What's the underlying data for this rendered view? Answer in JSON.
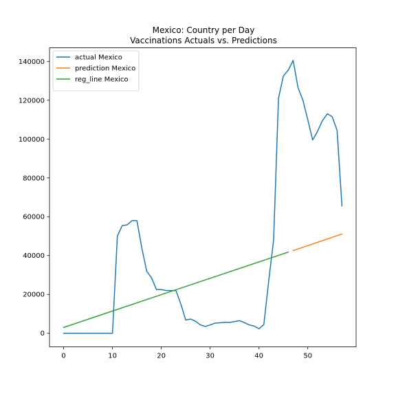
{
  "chart_data": {
    "type": "line",
    "title": "Mexico: Country per Day",
    "subtitle": "Vaccinations Actuals vs. Predictions",
    "xlabel": "",
    "ylabel": "",
    "xlim": [
      -2.9,
      59.9
    ],
    "ylim": [
      -7000,
      147000
    ],
    "x_ticks": [
      0,
      10,
      20,
      30,
      40,
      50
    ],
    "y_ticks": [
      0,
      20000,
      40000,
      60000,
      80000,
      100000,
      120000,
      140000
    ],
    "grid": false,
    "legend_position": "top-left",
    "series": [
      {
        "name": "actual Mexico",
        "color": "#1f77b4",
        "x": [
          0,
          1,
          2,
          3,
          4,
          5,
          6,
          7,
          8,
          9,
          10,
          11,
          12,
          13,
          14,
          15,
          16,
          17,
          18,
          19,
          20,
          21,
          22,
          23,
          24,
          25,
          26,
          27,
          28,
          29,
          30,
          31,
          32,
          33,
          34,
          35,
          36,
          37,
          38,
          39,
          40,
          41,
          42,
          43,
          44,
          45,
          46,
          47,
          48,
          49,
          50,
          51,
          52,
          53,
          54,
          55,
          56,
          57
        ],
        "y": [
          0,
          0,
          0,
          0,
          0,
          0,
          0,
          0,
          0,
          0,
          0,
          50000,
          55500,
          55800,
          58000,
          58000,
          44000,
          32000,
          28500,
          22500,
          22500,
          22000,
          22000,
          22000,
          15000,
          6800,
          7300,
          6200,
          4300,
          3500,
          4300,
          5200,
          5400,
          5600,
          5600,
          6000,
          6500,
          5500,
          4300,
          3700,
          2300,
          4500,
          27000,
          48000,
          121000,
          132500,
          135500,
          140500,
          126500,
          120000,
          110000,
          99500,
          104000,
          109500,
          113000,
          111500,
          104500,
          65500
        ]
      },
      {
        "name": "prediction Mexico",
        "color": "#ff7f0e",
        "x": [
          47,
          57
        ],
        "y": [
          42600,
          51100
        ]
      },
      {
        "name": "reg_line Mexico",
        "color": "#2ca02c",
        "x": [
          0,
          46
        ],
        "y": [
          3000,
          41800
        ]
      }
    ]
  }
}
